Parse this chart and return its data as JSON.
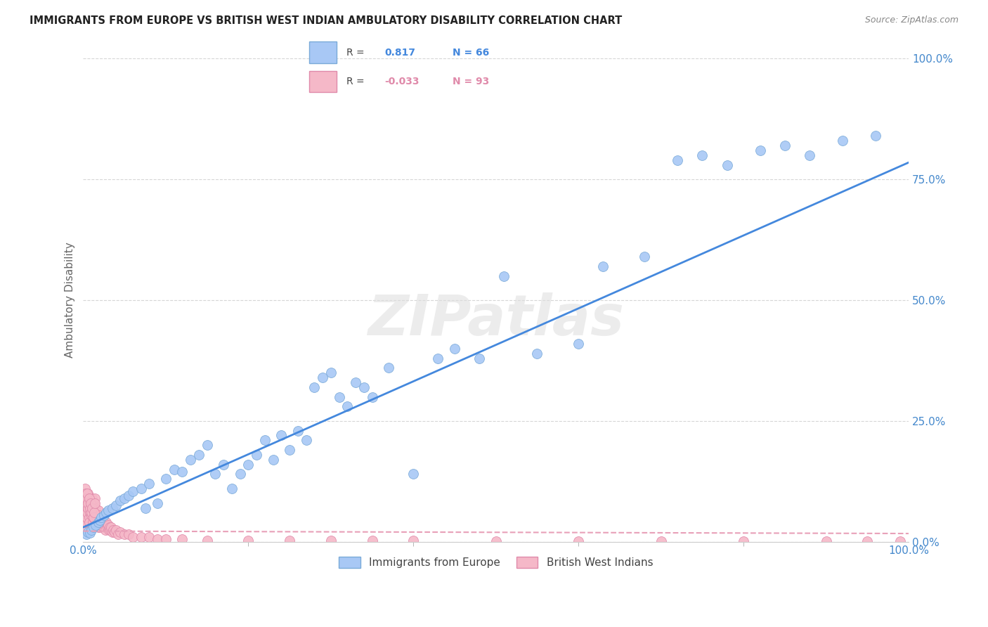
{
  "title": "IMMIGRANTS FROM EUROPE VS BRITISH WEST INDIAN AMBULATORY DISABILITY CORRELATION CHART",
  "source": "Source: ZipAtlas.com",
  "ylabel": "Ambulatory Disability",
  "yticks_labels": [
    "0.0%",
    "25.0%",
    "50.0%",
    "75.0%",
    "100.0%"
  ],
  "ytick_vals": [
    0,
    25,
    50,
    75,
    100
  ],
  "r_europe": 0.817,
  "n_europe": 66,
  "r_bwi": -0.033,
  "n_bwi": 93,
  "europe_color": "#a8c8f5",
  "europe_edge": "#7aaad8",
  "bwi_color": "#f5b8c8",
  "bwi_edge": "#e08aaa",
  "trendline_europe_color": "#4488dd",
  "trendline_bwi_color": "#e8a0b8",
  "watermark": "ZIPatlas",
  "europe_slope": 0.755,
  "europe_intercept": 3.0,
  "bwi_slope": -0.005,
  "bwi_intercept": 2.2,
  "europe_x": [
    0.4,
    0.6,
    0.8,
    1.0,
    1.2,
    1.5,
    1.8,
    2.0,
    2.2,
    2.5,
    2.8,
    3.0,
    3.5,
    4.0,
    4.5,
    5.0,
    5.5,
    6.0,
    7.0,
    7.5,
    8.0,
    9.0,
    10.0,
    11.0,
    12.0,
    13.0,
    14.0,
    15.0,
    16.0,
    17.0,
    18.0,
    19.0,
    20.0,
    21.0,
    22.0,
    23.0,
    24.0,
    25.0,
    26.0,
    27.0,
    28.0,
    29.0,
    30.0,
    31.0,
    32.0,
    33.0,
    34.0,
    35.0,
    37.0,
    40.0,
    43.0,
    45.0,
    48.0,
    51.0,
    55.0,
    60.0,
    63.0,
    68.0,
    72.0,
    75.0,
    78.0,
    82.0,
    85.0,
    88.0,
    92.0,
    96.0
  ],
  "europe_y": [
    1.5,
    2.0,
    1.8,
    2.5,
    3.0,
    3.5,
    4.0,
    4.5,
    5.0,
    5.5,
    6.0,
    6.5,
    7.0,
    7.5,
    8.5,
    9.0,
    9.5,
    10.5,
    11.0,
    7.0,
    12.0,
    8.0,
    13.0,
    15.0,
    14.5,
    17.0,
    18.0,
    20.0,
    14.0,
    16.0,
    11.0,
    14.0,
    16.0,
    18.0,
    21.0,
    17.0,
    22.0,
    19.0,
    23.0,
    21.0,
    32.0,
    34.0,
    35.0,
    30.0,
    28.0,
    33.0,
    32.0,
    30.0,
    36.0,
    14.0,
    38.0,
    40.0,
    38.0,
    55.0,
    39.0,
    41.0,
    57.0,
    59.0,
    79.0,
    80.0,
    78.0,
    81.0,
    82.0,
    80.0,
    83.0,
    84.0
  ],
  "bwi_x": [
    0.1,
    0.15,
    0.2,
    0.25,
    0.3,
    0.35,
    0.4,
    0.45,
    0.5,
    0.55,
    0.6,
    0.65,
    0.7,
    0.75,
    0.8,
    0.85,
    0.9,
    0.95,
    1.0,
    1.05,
    1.1,
    1.15,
    1.2,
    1.25,
    1.3,
    1.35,
    1.4,
    1.45,
    1.5,
    1.55,
    1.6,
    1.65,
    1.7,
    1.75,
    1.8,
    1.85,
    1.9,
    1.95,
    2.0,
    2.1,
    2.2,
    2.3,
    2.4,
    2.5,
    2.6,
    2.7,
    2.8,
    2.9,
    3.0,
    3.1,
    3.2,
    3.3,
    3.4,
    3.5,
    3.6,
    3.8,
    4.0,
    4.2,
    4.5,
    5.0,
    5.5,
    6.0,
    7.0,
    8.0,
    9.0,
    10.0,
    12.0,
    15.0,
    20.0,
    25.0,
    30.0,
    35.0,
    40.0,
    50.0,
    60.0,
    70.0,
    80.0,
    90.0,
    95.0,
    99.0,
    0.2,
    0.3,
    0.4,
    0.5,
    0.6,
    0.7,
    0.8,
    0.9,
    1.0,
    1.1,
    1.2,
    1.3,
    1.4
  ],
  "bwi_y": [
    3.5,
    5.0,
    7.0,
    4.0,
    6.0,
    8.0,
    5.0,
    9.0,
    6.0,
    10.0,
    7.0,
    8.0,
    5.0,
    4.0,
    6.0,
    9.0,
    7.0,
    5.5,
    8.0,
    6.0,
    9.0,
    4.0,
    7.0,
    5.0,
    8.0,
    6.0,
    9.0,
    4.5,
    7.0,
    5.0,
    4.0,
    3.5,
    5.0,
    4.0,
    6.5,
    3.0,
    5.5,
    4.5,
    3.0,
    4.0,
    3.5,
    4.5,
    3.0,
    4.0,
    3.5,
    2.5,
    4.0,
    3.0,
    3.5,
    2.5,
    3.0,
    2.5,
    3.0,
    2.0,
    2.5,
    2.0,
    2.5,
    1.5,
    2.0,
    1.5,
    1.5,
    1.0,
    1.0,
    1.0,
    0.5,
    0.5,
    0.5,
    0.3,
    0.3,
    0.2,
    0.2,
    0.2,
    0.2,
    0.1,
    0.1,
    0.1,
    0.1,
    0.1,
    0.1,
    0.1,
    11.0,
    10.0,
    9.0,
    10.0,
    8.0,
    9.0,
    7.0,
    8.0,
    6.0,
    7.0,
    5.0,
    6.0,
    8.0
  ]
}
